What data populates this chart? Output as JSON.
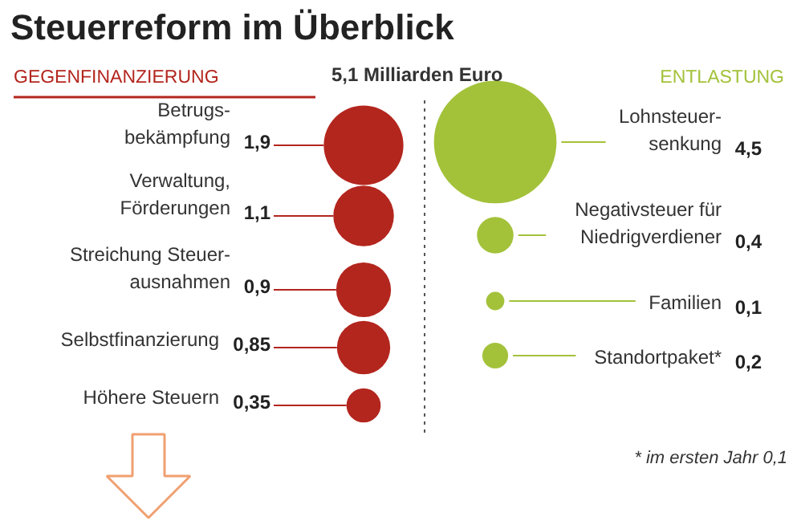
{
  "chart_data": {
    "type": "other",
    "title": "Steuerreform im Überblick",
    "annotations": [
      "5,1 Milliarden Euro",
      "* im ersten Jahr 0,1"
    ],
    "categories": [
      "Betrugs-\nbekämpfung",
      "Verwaltung,\nFörderungen",
      "Streichung Steuer-\nausnahmen",
      "Selbstfinanzierung",
      "Höhere Steuern",
      "Lohnsteuer-\nsenkung",
      "Negativsteuer für\nNiedrigverdiener",
      "Familien",
      "Standortpaket*"
    ],
    "series": [
      {
        "name": "GEGENFINANZIERUNG",
        "color": "#b3261e",
        "values": [
          1.9,
          1.1,
          0.9,
          0.85,
          0.35,
          null,
          null,
          null,
          null
        ],
        "value_labels": [
          "1,9",
          "1,1",
          "0,9",
          "0,85",
          "0,35",
          null,
          null,
          null,
          null
        ]
      },
      {
        "name": "ENTLASTUNG",
        "color": "#a3c23a",
        "values": [
          null,
          null,
          null,
          null,
          null,
          4.5,
          0.4,
          0.1,
          0.2
        ],
        "value_labels": [
          null,
          null,
          null,
          null,
          null,
          "4,5",
          "0,4",
          "0,1",
          "0,2"
        ]
      }
    ]
  }
}
